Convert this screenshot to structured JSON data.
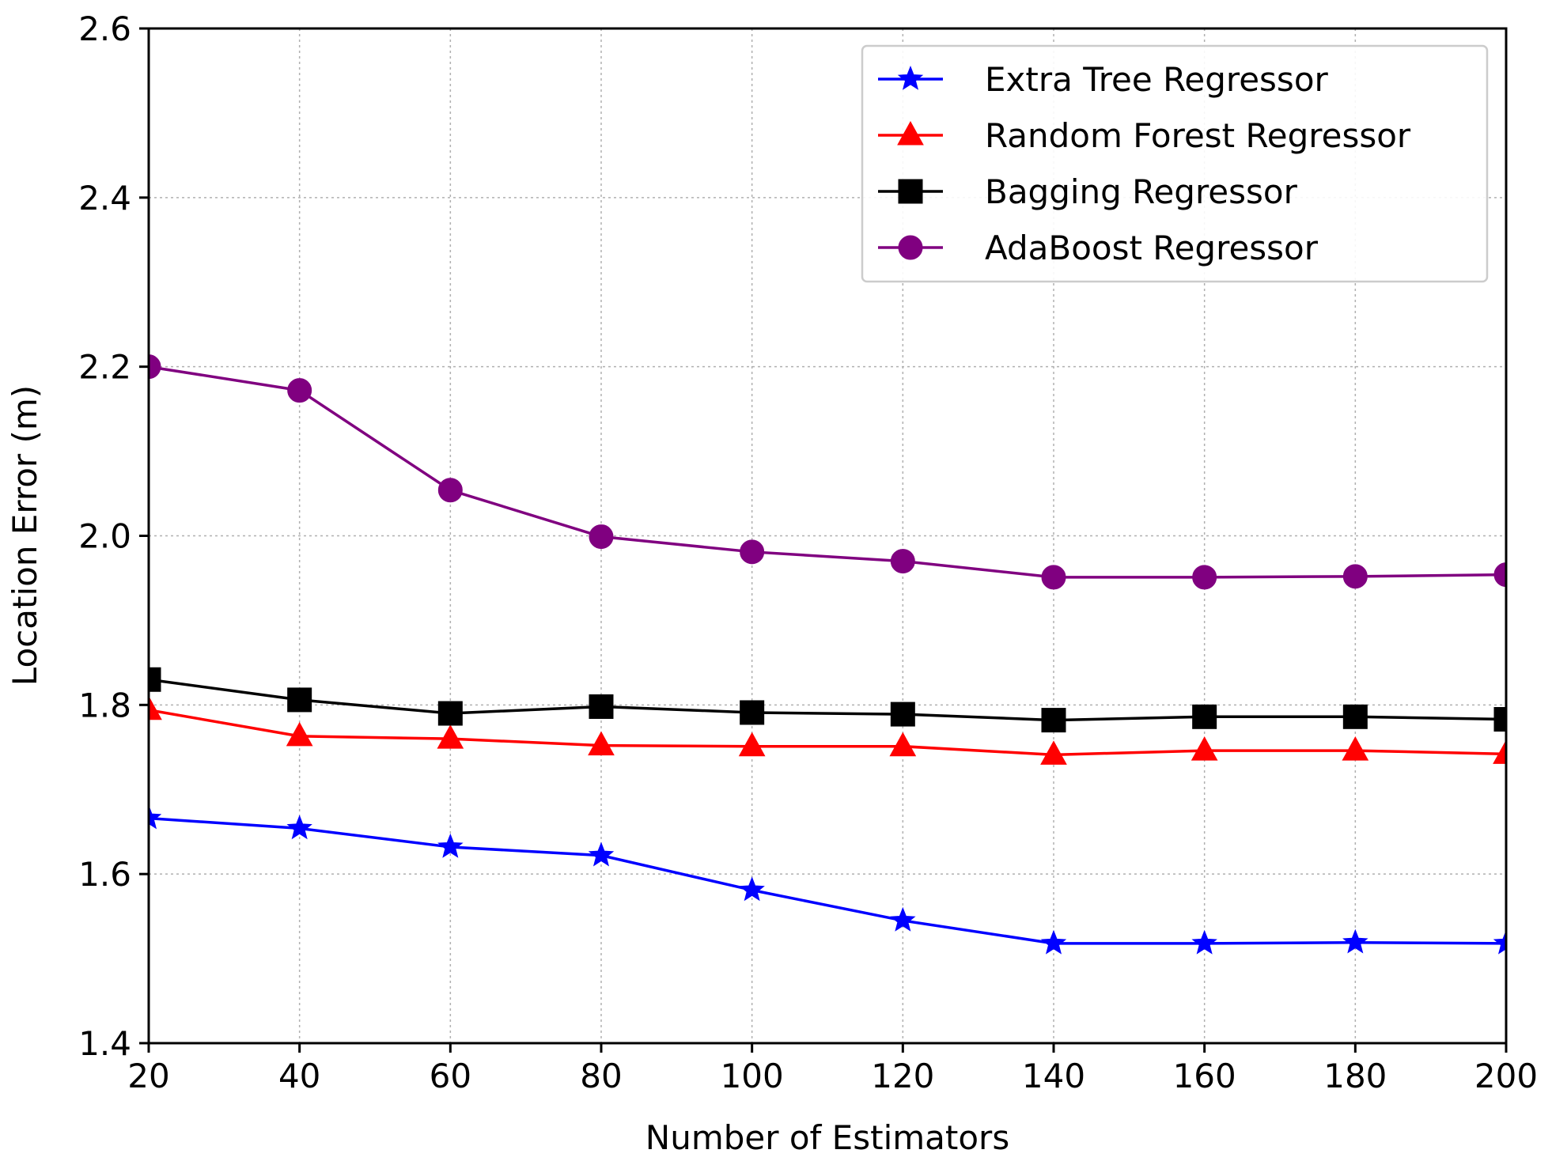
{
  "chart_data": {
    "type": "line",
    "title": "",
    "xlabel": "Number of Estimators",
    "ylabel": "Location Error (m)",
    "x": [
      20,
      40,
      60,
      80,
      100,
      120,
      140,
      160,
      180,
      200
    ],
    "xlim": [
      20,
      200
    ],
    "ylim": [
      1.4,
      2.6
    ],
    "xticks": [
      20,
      40,
      60,
      80,
      100,
      120,
      140,
      160,
      180,
      200
    ],
    "yticks": [
      1.4,
      1.6,
      1.8,
      2.0,
      2.2,
      2.4,
      2.6
    ],
    "ytick_labels": [
      "1.4",
      "1.6",
      "1.8",
      "2.0",
      "2.2",
      "2.4",
      "2.6"
    ],
    "grid": true,
    "legend_position": "top-right",
    "series": [
      {
        "name": "Extra Tree Regressor",
        "color": "#0000ff",
        "marker": "star",
        "values": [
          1.666,
          1.654,
          1.632,
          1.622,
          1.581,
          1.545,
          1.518,
          1.518,
          1.519,
          1.518
        ]
      },
      {
        "name": "Random Forest Regressor",
        "color": "#ff0000",
        "marker": "triangle",
        "values": [
          1.794,
          1.763,
          1.76,
          1.752,
          1.751,
          1.751,
          1.741,
          1.746,
          1.746,
          1.742
        ]
      },
      {
        "name": "Bagging Regressor",
        "color": "#000000",
        "marker": "square",
        "values": [
          1.83,
          1.806,
          1.79,
          1.798,
          1.791,
          1.789,
          1.782,
          1.786,
          1.786,
          1.783
        ]
      },
      {
        "name": "AdaBoost Regressor",
        "color": "#800080",
        "marker": "circle",
        "values": [
          2.2,
          2.172,
          2.054,
          1.999,
          1.981,
          1.97,
          1.951,
          1.951,
          1.952,
          1.954
        ]
      }
    ]
  }
}
